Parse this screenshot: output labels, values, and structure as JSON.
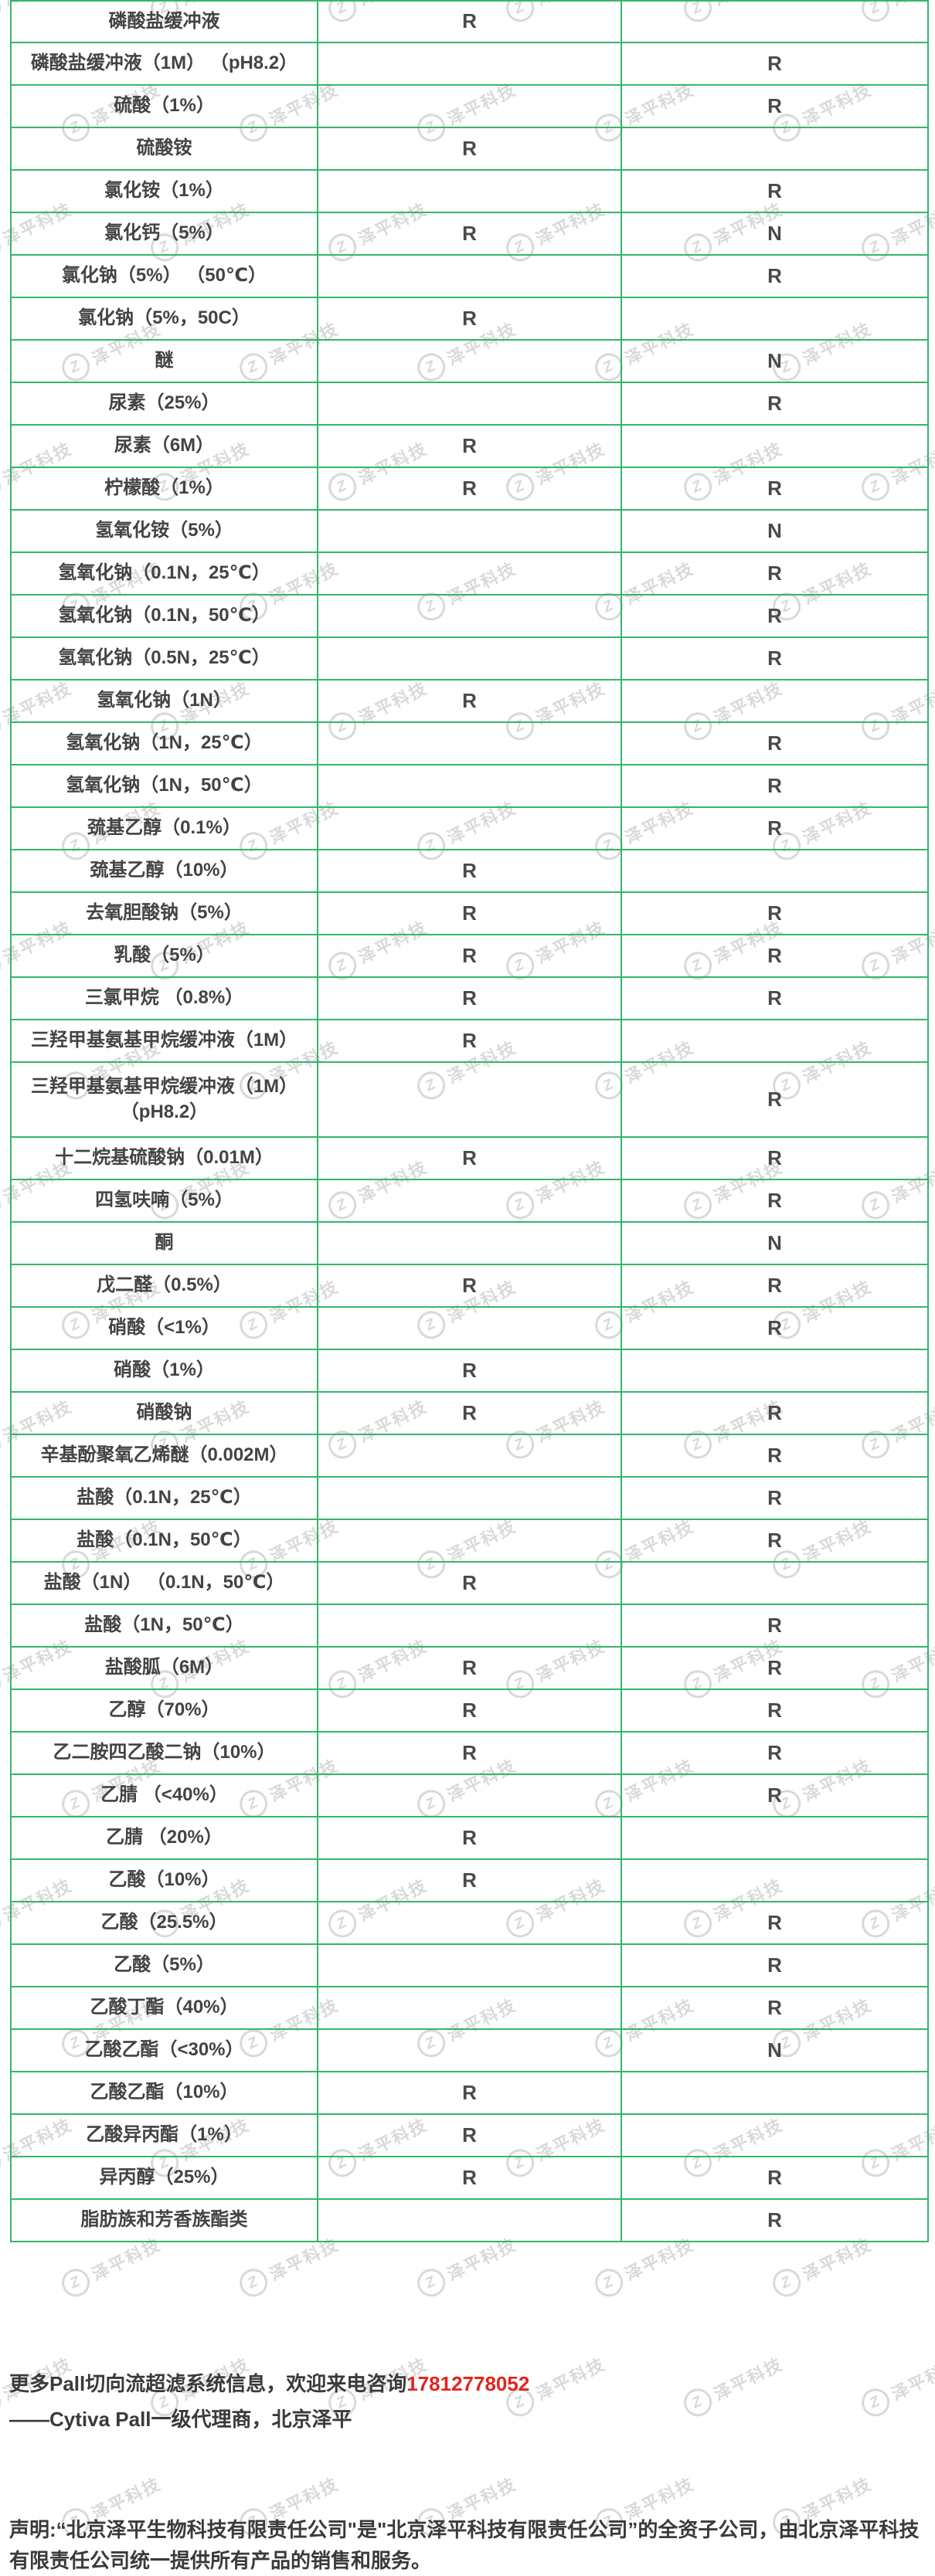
{
  "watermark": {
    "text": "泽平科技",
    "logo_letter": "Z"
  },
  "colors": {
    "border_green": "#35b56b",
    "table_text": "#434343",
    "phone_red": "#e2241c",
    "watermark_gray": "#d9d9d9"
  },
  "table": {
    "rows": [
      {
        "name": "磷酸盐缓冲液",
        "c2": "R",
        "c3": "",
        "h": 52
      },
      {
        "name": "磷酸盐缓冲液（1M） （pH8.2）",
        "c2": "",
        "c3": "R"
      },
      {
        "name": "硫酸（1%）",
        "c2": "",
        "c3": "R"
      },
      {
        "name": "硫酸铵",
        "c2": "R",
        "c3": ""
      },
      {
        "name": "氯化铵（1%）",
        "c2": "",
        "c3": "R"
      },
      {
        "name": "氯化钙（5%）",
        "c2": "R",
        "c3": "N"
      },
      {
        "name": "氯化钠（5%） （50℃）",
        "c2": "",
        "c3": "R"
      },
      {
        "name": "氯化钠（5%，50C）",
        "c2": "R",
        "c3": ""
      },
      {
        "name": "醚",
        "c2": "",
        "c3": "N"
      },
      {
        "name": "尿素（25%）",
        "c2": "",
        "c3": "R"
      },
      {
        "name": "尿素（6M）",
        "c2": "R",
        "c3": ""
      },
      {
        "name": "柠檬酸（1%）",
        "c2": "R",
        "c3": "R"
      },
      {
        "name": "氢氧化铵（5%）",
        "c2": "",
        "c3": "N"
      },
      {
        "name": "氢氧化钠（0.1N，25℃）",
        "c2": "",
        "c3": "R"
      },
      {
        "name": "氢氧化钠（0.1N，50℃）",
        "c2": "",
        "c3": "R"
      },
      {
        "name": "氢氧化钠（0.5N，25℃）",
        "c2": "",
        "c3": "R"
      },
      {
        "name": "氢氧化钠（1N）",
        "c2": "R",
        "c3": ""
      },
      {
        "name": "氢氧化钠（1N，25℃）",
        "c2": "",
        "c3": "R"
      },
      {
        "name": "氢氧化钠（1N，50℃）",
        "c2": "",
        "c3": "R"
      },
      {
        "name": "巯基乙醇（0.1%）",
        "c2": "",
        "c3": "R"
      },
      {
        "name": "巯基乙醇（10%）",
        "c2": "R",
        "c3": ""
      },
      {
        "name": "去氧胆酸钠（5%）",
        "c2": "R",
        "c3": "R"
      },
      {
        "name": "乳酸（5%）",
        "c2": "R",
        "c3": "R"
      },
      {
        "name": "三氯甲烷 （0.8%）",
        "c2": "R",
        "c3": "R"
      },
      {
        "name": "三羟甲基氨基甲烷缓冲液（1M）",
        "c2": "R",
        "c3": ""
      },
      {
        "name": "三羟甲基氨基甲烷缓冲液（1M）\n（pH8.2）",
        "c2": "",
        "c3": "R",
        "h": 97
      },
      {
        "name": "十二烷基硫酸钠（0.01M）",
        "c2": "R",
        "c3": "R"
      },
      {
        "name": "四氢呋喃（5%）",
        "c2": "",
        "c3": "R"
      },
      {
        "name": "酮",
        "c2": "",
        "c3": "N"
      },
      {
        "name": "戊二醛（0.5%）",
        "c2": "R",
        "c3": "R"
      },
      {
        "name": "硝酸（<1%）",
        "c2": "",
        "c3": "R"
      },
      {
        "name": "硝酸（1%）",
        "c2": "R",
        "c3": ""
      },
      {
        "name": "硝酸钠",
        "c2": "R",
        "c3": "R"
      },
      {
        "name": "辛基酚聚氧乙烯醚（0.002M）",
        "c2": "",
        "c3": "R"
      },
      {
        "name": "盐酸（0.1N，25℃）",
        "c2": "",
        "c3": "R"
      },
      {
        "name": "盐酸（0.1N，50℃）",
        "c2": "",
        "c3": "R"
      },
      {
        "name": "盐酸（1N） （0.1N，50℃）",
        "c2": "R",
        "c3": ""
      },
      {
        "name": "盐酸（1N，50℃）",
        "c2": "",
        "c3": "R"
      },
      {
        "name": "盐酸胍（6M）",
        "c2": "R",
        "c3": "R"
      },
      {
        "name": "乙醇（70%）",
        "c2": "R",
        "c3": "R"
      },
      {
        "name": "乙二胺四乙酸二钠（10%）",
        "c2": "R",
        "c3": "R"
      },
      {
        "name": "乙腈 （<40%）",
        "c2": "",
        "c3": "R"
      },
      {
        "name": "乙腈 （20%）",
        "c2": "R",
        "c3": ""
      },
      {
        "name": "乙酸（10%）",
        "c2": "R",
        "c3": ""
      },
      {
        "name": "乙酸（25.5%）",
        "c2": "",
        "c3": "R"
      },
      {
        "name": "乙酸（5%）",
        "c2": "",
        "c3": "R"
      },
      {
        "name": "乙酸丁酯（40%）",
        "c2": "",
        "c3": "R"
      },
      {
        "name": "乙酸乙酯（<30%）",
        "c2": "",
        "c3": "N"
      },
      {
        "name": "乙酸乙酯（10%）",
        "c2": "R",
        "c3": ""
      },
      {
        "name": "乙酸异丙酯（1%）",
        "c2": "R",
        "c3": ""
      },
      {
        "name": "异丙醇（25%）",
        "c2": "R",
        "c3": "R"
      },
      {
        "name": "脂肪族和芳香族酯类",
        "c2": "",
        "c3": "R"
      }
    ]
  },
  "footer": {
    "info_text": "更多Pall切向流超滤系统信息，欢迎来电咨询",
    "phone": "17812778052",
    "agent_line": "——Cytiva Pall一级代理商，北京泽平",
    "statement": "声明:“北京泽平生物科技有限责任公司\"是\"北京泽平科技有限责任公司”的全资子公司，由北京泽平科技有限责任公司统一提供所有产品的销售和服务。"
  }
}
